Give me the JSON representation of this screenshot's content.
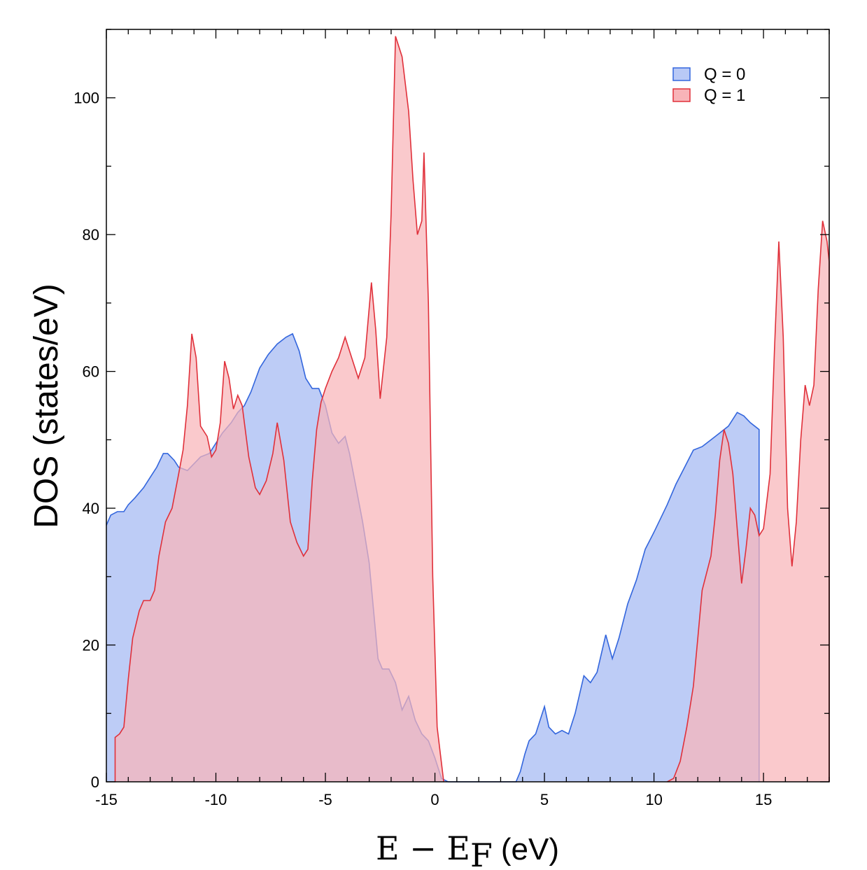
{
  "chart_data": {
    "type": "area",
    "title": "",
    "xlabel": "E − E",
    "xlabel_subscript": "F",
    "xlabel_unit": "(eV)",
    "ylabel": "DOS (states/eV)",
    "xlim": [
      -15,
      18
    ],
    "ylim": [
      0,
      110
    ],
    "xticks": [
      -15,
      -10,
      -5,
      0,
      5,
      10,
      15
    ],
    "xtick_labels": [
      "-15",
      "-10",
      "-5",
      "0",
      "5",
      "10",
      "15"
    ],
    "yticks": [
      0,
      20,
      40,
      60,
      80,
      100
    ],
    "ytick_labels": [
      "0",
      "20",
      "40",
      "60",
      "80",
      "100"
    ],
    "grid": false,
    "legend_position": "top-right",
    "series": [
      {
        "name": "Q = 0",
        "color": "#3366dd",
        "fill": "#b9c9f6",
        "points": [
          [
            -15,
            37.5
          ],
          [
            -14.8,
            39
          ],
          [
            -14.5,
            39.5
          ],
          [
            -14.2,
            39.5
          ],
          [
            -14,
            40.5
          ],
          [
            -13.7,
            41.5
          ],
          [
            -13.3,
            43
          ],
          [
            -13,
            44.5
          ],
          [
            -12.7,
            46
          ],
          [
            -12.4,
            48
          ],
          [
            -12.2,
            48
          ],
          [
            -11.9,
            47
          ],
          [
            -11.7,
            46
          ],
          [
            -11.3,
            45.5
          ],
          [
            -11,
            46.5
          ],
          [
            -10.7,
            47.5
          ],
          [
            -10.3,
            48
          ],
          [
            -10,
            49.5
          ],
          [
            -9.7,
            51
          ],
          [
            -9.3,
            52.5
          ],
          [
            -9,
            54
          ],
          [
            -8.7,
            55
          ],
          [
            -8.4,
            57
          ],
          [
            -8,
            60.5
          ],
          [
            -7.6,
            62.5
          ],
          [
            -7.2,
            64
          ],
          [
            -6.8,
            65
          ],
          [
            -6.5,
            65.5
          ],
          [
            -6.2,
            63
          ],
          [
            -5.9,
            59
          ],
          [
            -5.6,
            57.5
          ],
          [
            -5.3,
            57.5
          ],
          [
            -5,
            55
          ],
          [
            -4.7,
            51
          ],
          [
            -4.4,
            49.5
          ],
          [
            -4.1,
            50.5
          ],
          [
            -3.9,
            48
          ],
          [
            -3.6,
            43
          ],
          [
            -3.3,
            38
          ],
          [
            -3,
            32
          ],
          [
            -2.8,
            25
          ],
          [
            -2.6,
            18
          ],
          [
            -2.4,
            16.5
          ],
          [
            -2.1,
            16.5
          ],
          [
            -1.8,
            14.5
          ],
          [
            -1.5,
            10.5
          ],
          [
            -1.2,
            12.5
          ],
          [
            -0.9,
            9
          ],
          [
            -0.6,
            7
          ],
          [
            -0.3,
            6
          ],
          [
            0,
            3.5
          ],
          [
            0.3,
            0.5
          ],
          [
            0.6,
            0
          ],
          [
            3.7,
            0
          ],
          [
            3.9,
            1.5
          ],
          [
            4.1,
            4
          ],
          [
            4.3,
            6
          ],
          [
            4.6,
            7
          ],
          [
            4.8,
            9
          ],
          [
            5,
            11
          ],
          [
            5.2,
            8
          ],
          [
            5.5,
            7
          ],
          [
            5.8,
            7.5
          ],
          [
            6.1,
            7
          ],
          [
            6.4,
            10
          ],
          [
            6.8,
            15.5
          ],
          [
            7.1,
            14.5
          ],
          [
            7.4,
            16
          ],
          [
            7.8,
            21.5
          ],
          [
            8.1,
            18
          ],
          [
            8.4,
            21
          ],
          [
            8.8,
            26
          ],
          [
            9.2,
            29.5
          ],
          [
            9.6,
            34
          ],
          [
            10,
            36.5
          ],
          [
            10.3,
            38.5
          ],
          [
            10.6,
            40.5
          ],
          [
            11,
            43.5
          ],
          [
            11.4,
            46
          ],
          [
            11.8,
            48.5
          ],
          [
            12.2,
            49
          ],
          [
            12.6,
            50
          ],
          [
            13,
            51
          ],
          [
            13.4,
            52
          ],
          [
            13.8,
            54
          ],
          [
            14.1,
            53.5
          ],
          [
            14.4,
            52.5
          ],
          [
            14.8,
            51.5
          ],
          [
            14.8,
            0
          ]
        ]
      },
      {
        "name": "Q = 1",
        "color": "#e0303a",
        "fill": "#f8b4b8",
        "points": [
          [
            -14.6,
            0
          ],
          [
            -14.6,
            6.5
          ],
          [
            -14.4,
            7
          ],
          [
            -14.2,
            8
          ],
          [
            -14,
            15
          ],
          [
            -13.8,
            21
          ],
          [
            -13.5,
            25
          ],
          [
            -13.3,
            26.5
          ],
          [
            -13,
            26.5
          ],
          [
            -12.8,
            28
          ],
          [
            -12.6,
            33
          ],
          [
            -12.3,
            38
          ],
          [
            -12,
            40
          ],
          [
            -11.7,
            45
          ],
          [
            -11.5,
            48.5
          ],
          [
            -11.3,
            55
          ],
          [
            -11.1,
            65.5
          ],
          [
            -10.9,
            62
          ],
          [
            -10.7,
            52
          ],
          [
            -10.4,
            50.5
          ],
          [
            -10.2,
            47.5
          ],
          [
            -10,
            48.5
          ],
          [
            -9.8,
            52.5
          ],
          [
            -9.6,
            61.5
          ],
          [
            -9.4,
            59
          ],
          [
            -9.2,
            54.5
          ],
          [
            -9,
            56.5
          ],
          [
            -8.8,
            55
          ],
          [
            -8.5,
            47.5
          ],
          [
            -8.2,
            43
          ],
          [
            -8,
            42
          ],
          [
            -7.7,
            44
          ],
          [
            -7.4,
            48
          ],
          [
            -7.2,
            52.5
          ],
          [
            -6.9,
            47
          ],
          [
            -6.6,
            38
          ],
          [
            -6.3,
            35
          ],
          [
            -6,
            33
          ],
          [
            -5.8,
            34
          ],
          [
            -5.6,
            44
          ],
          [
            -5.4,
            51.5
          ],
          [
            -5.2,
            55.5
          ],
          [
            -5,
            57.5
          ],
          [
            -4.7,
            60
          ],
          [
            -4.4,
            62
          ],
          [
            -4.1,
            65
          ],
          [
            -3.8,
            62
          ],
          [
            -3.5,
            59
          ],
          [
            -3.2,
            62
          ],
          [
            -2.9,
            73
          ],
          [
            -2.7,
            66
          ],
          [
            -2.5,
            56
          ],
          [
            -2.2,
            65
          ],
          [
            -2,
            83
          ],
          [
            -1.8,
            109
          ],
          [
            -1.5,
            106
          ],
          [
            -1.2,
            98
          ],
          [
            -1,
            88
          ],
          [
            -0.8,
            80
          ],
          [
            -0.6,
            82
          ],
          [
            -0.5,
            92
          ],
          [
            -0.3,
            70
          ],
          [
            -0.1,
            30
          ],
          [
            0.1,
            8
          ],
          [
            0.4,
            0
          ]
        ]
      },
      {
        "name": "",
        "color": "#e0303a",
        "fill": "#f8b4b8",
        "points": [
          [
            10.6,
            0
          ],
          [
            10.9,
            0.5
          ],
          [
            11.2,
            3
          ],
          [
            11.5,
            8
          ],
          [
            11.8,
            14
          ],
          [
            12,
            21
          ],
          [
            12.2,
            28
          ],
          [
            12.4,
            30.5
          ],
          [
            12.6,
            33
          ],
          [
            12.8,
            39
          ],
          [
            13,
            47
          ],
          [
            13.2,
            51.5
          ],
          [
            13.4,
            49.5
          ],
          [
            13.6,
            45
          ],
          [
            13.8,
            37
          ],
          [
            14,
            29
          ],
          [
            14.2,
            34
          ],
          [
            14.4,
            40
          ],
          [
            14.6,
            39
          ],
          [
            14.8,
            36
          ],
          [
            15,
            37
          ],
          [
            15.3,
            45
          ],
          [
            15.5,
            63
          ],
          [
            15.7,
            79
          ],
          [
            15.9,
            65
          ],
          [
            16.1,
            40
          ],
          [
            16.3,
            31.5
          ],
          [
            16.5,
            38
          ],
          [
            16.7,
            50
          ],
          [
            16.9,
            58
          ],
          [
            17.1,
            55
          ],
          [
            17.3,
            58
          ],
          [
            17.5,
            72
          ],
          [
            17.7,
            82
          ],
          [
            17.9,
            79
          ],
          [
            18,
            76
          ],
          [
            18,
            0
          ]
        ]
      }
    ]
  }
}
